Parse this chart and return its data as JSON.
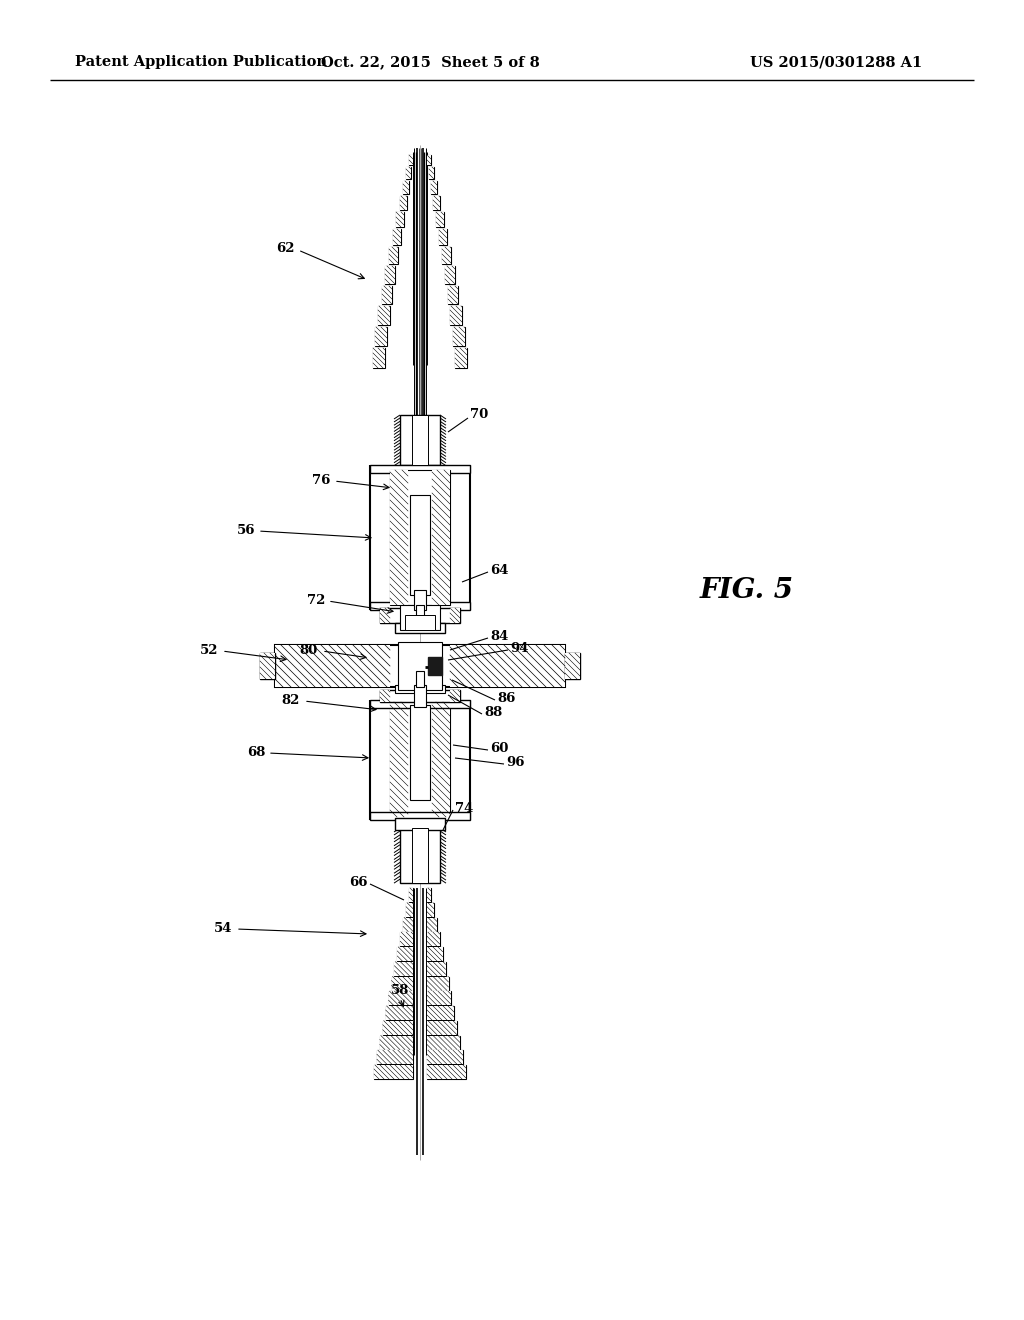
{
  "bg_color": "#ffffff",
  "line_color": "#000000",
  "header_left": "Patent Application Publication",
  "header_center": "Oct. 22, 2015  Sheet 5 of 8",
  "header_right": "US 2015/0301288 A1",
  "fig_label": "FIG. 5",
  "header_fontsize": 10.5,
  "label_fontsize": 9.5,
  "fig_fontsize": 20
}
